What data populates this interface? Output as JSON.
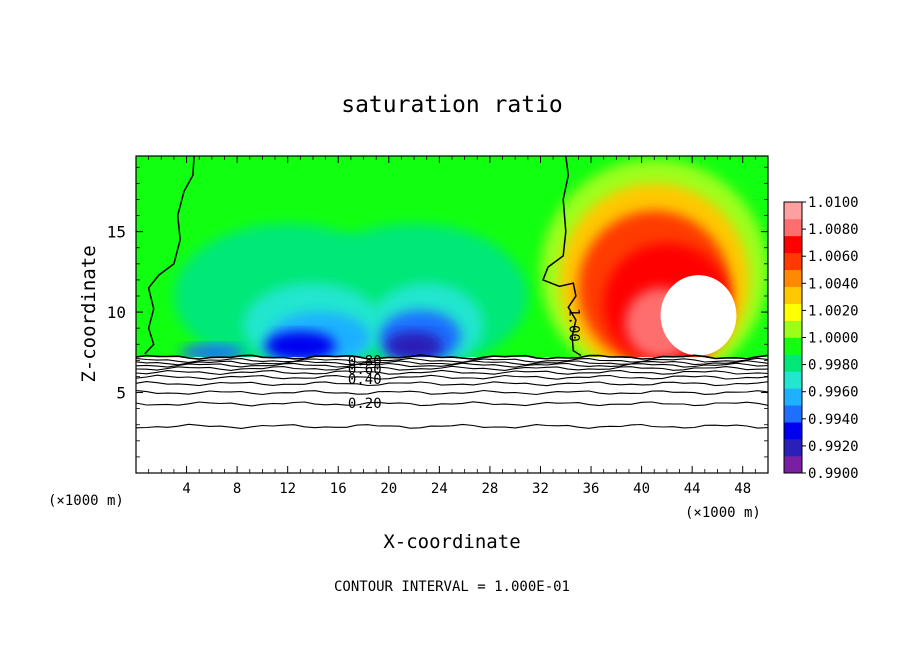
{
  "chart_data": {
    "type": "heatmap",
    "title": "saturation ratio",
    "xlabel": "X-coordinate",
    "ylabel": "Z-coordinate",
    "x_unit_left": "(×1000 m)",
    "x_unit_right": "(×1000 m)",
    "footer": "CONTOUR INTERVAL = 1.000E-01",
    "xlim": [
      0,
      50
    ],
    "ylim": [
      0,
      19.7
    ],
    "x_ticks": [
      4,
      8,
      12,
      16,
      20,
      24,
      28,
      32,
      36,
      40,
      44,
      48
    ],
    "y_ticks": [
      5,
      10,
      15
    ],
    "colorbar": {
      "min": 0.99,
      "max": 1.01,
      "labels": [
        "1.0100",
        "1.0080",
        "1.0060",
        "1.0040",
        "1.0020",
        "1.0000",
        "0.9980",
        "0.9960",
        "0.9940",
        "0.9920",
        "0.9900"
      ],
      "colors": [
        "#7a1fa2",
        "#2a1fb8",
        "#0000f0",
        "#1f6fff",
        "#1fb0ff",
        "#22e6cf",
        "#00e878",
        "#11ff11",
        "#9cff1a",
        "#ffff00",
        "#ffc800",
        "#ff8a00",
        "#ff3a00",
        "#ff0000",
        "#ff6e6e",
        "#ffa0a0"
      ]
    },
    "contour_line_labels": [
      {
        "label": "0.80",
        "x": 18.1,
        "z": 7.0
      },
      {
        "label": "0.60",
        "x": 18.1,
        "z": 6.45
      },
      {
        "label": "0.40",
        "x": 18.1,
        "z": 5.85
      },
      {
        "label": "0.20",
        "x": 18.1,
        "z": 4.35
      },
      {
        "label": "1.00",
        "x": 34.3,
        "z": 9.2
      }
    ],
    "contour_levels_z": [
      7.2,
      7.0,
      6.85,
      6.7,
      6.5,
      6.25,
      5.95,
      5.55,
      5.0,
      4.3,
      2.9
    ],
    "ground_top_z": 7.2
  }
}
